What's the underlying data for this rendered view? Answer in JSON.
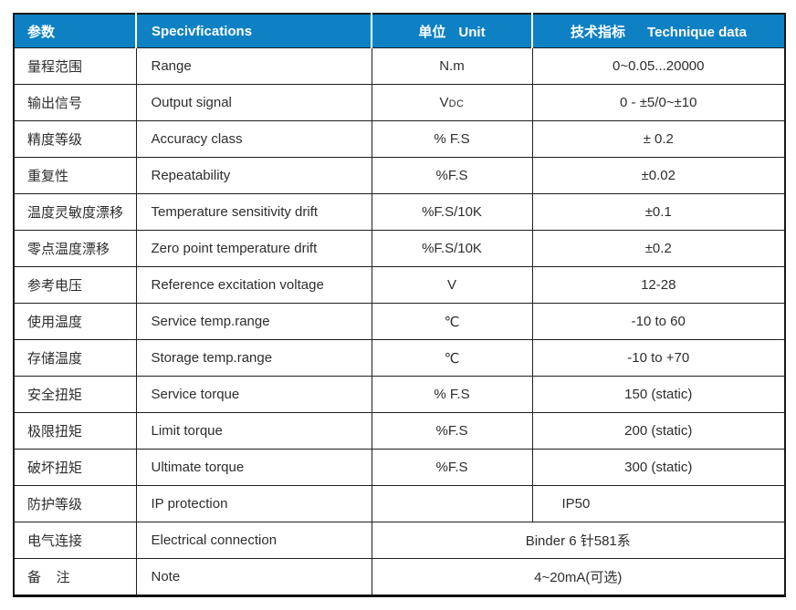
{
  "header": {
    "param": "参数",
    "spec": "Specivfications",
    "unit_cn": "单位",
    "unit_en": "Unit",
    "tech_cn": "技术指标",
    "tech_en": "Technique data"
  },
  "rows": [
    {
      "param": "量程范围",
      "spec": "Range",
      "unit": "N.m",
      "value": "0~0.05...20000"
    },
    {
      "param": "输出信号",
      "spec": "Output signal",
      "unit": "V",
      "unit_sub": "DC",
      "value": "0 - ±5/0~±10"
    },
    {
      "param": "精度等级",
      "spec": "Accuracy class",
      "unit": "% F.S",
      "value": "± 0.2"
    },
    {
      "param": "重复性",
      "spec": "Repeatability",
      "unit": "%F.S",
      "value": "±0.02"
    },
    {
      "param": "温度灵敏度漂移",
      "spec": "Temperature sensitivity drift",
      "unit": "%F.S/10K",
      "value": "±0.1"
    },
    {
      "param": "零点温度漂移",
      "spec": "Zero point temperature drift",
      "unit": "%F.S/10K",
      "value": "±0.2"
    },
    {
      "param": "参考电压",
      "spec": "Reference excitation voltage",
      "unit": "V",
      "value": "12-28"
    },
    {
      "param": "使用温度",
      "spec": "Service temp.range",
      "unit": "℃",
      "value": "-10 to 60"
    },
    {
      "param": "存储温度",
      "spec": "Storage temp.range",
      "unit": "℃",
      "value": "-10 to +70"
    },
    {
      "param": "安全扭矩",
      "spec": "Service torque",
      "unit": "% F.S",
      "value": "150 (static)"
    },
    {
      "param": "极限扭矩",
      "spec": "Limit torque",
      "unit": "%F.S",
      "value": "200 (static)"
    },
    {
      "param": "破坏扭矩",
      "spec": "Ultimate torque",
      "unit": "%F.S",
      "value": "300 (static)"
    },
    {
      "param": "防护等级",
      "spec": "IP protection",
      "unit": "",
      "value": "IP50"
    },
    {
      "param": "电气连接",
      "spec": "Electrical connection",
      "merged": "Binder 6 针581系"
    },
    {
      "param": "备    注",
      "spec": "Note",
      "merged": "4~20mA(可选)"
    }
  ],
  "colors": {
    "header_bg": "#0e81c4",
    "header_text": "#ffffff",
    "body_text": "#2d2d2d",
    "border": "#1a1a1a"
  }
}
